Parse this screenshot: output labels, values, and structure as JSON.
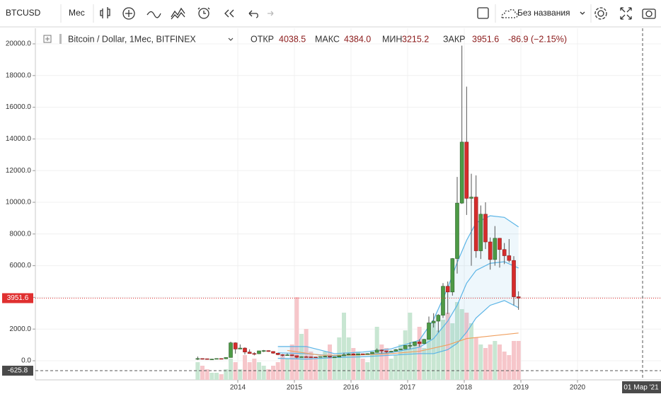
{
  "toolbar": {
    "symbol": "BTCUSD",
    "interval": "Мес",
    "layout_name": "Без названия"
  },
  "legend": {
    "title": "Bitcoin / Dollar, 1Мес, BITFINEX",
    "open_label": "ОТКР",
    "open": "4038.5",
    "high_label": "МАКС",
    "high": "4384.0",
    "low_label": "МИН",
    "low": "3215.2",
    "close_label": "ЗАКР",
    "close": "3951.6",
    "change": "-86.9 (−2.15%)"
  },
  "chart_data": {
    "type": "candlestick",
    "x": [
      "2013-04",
      "2013-05",
      "2013-06",
      "2013-07",
      "2013-08",
      "2013-09",
      "2013-10",
      "2013-11",
      "2013-12",
      "2014-01",
      "2014-02",
      "2014-03",
      "2014-04",
      "2014-05",
      "2014-06",
      "2014-07",
      "2014-08",
      "2014-09",
      "2014-10",
      "2014-11",
      "2014-12",
      "2015-01",
      "2015-02",
      "2015-03",
      "2015-04",
      "2015-05",
      "2015-06",
      "2015-07",
      "2015-08",
      "2015-09",
      "2015-10",
      "2015-11",
      "2015-12",
      "2016-01",
      "2016-02",
      "2016-03",
      "2016-04",
      "2016-05",
      "2016-06",
      "2016-07",
      "2016-08",
      "2016-09",
      "2016-10",
      "2016-11",
      "2016-12",
      "2017-01",
      "2017-02",
      "2017-03",
      "2017-04",
      "2017-05",
      "2017-06",
      "2017-07",
      "2017-08",
      "2017-09",
      "2017-10",
      "2017-11",
      "2017-12",
      "2018-01",
      "2018-02",
      "2018-03",
      "2018-04",
      "2018-05",
      "2018-06",
      "2018-07",
      "2018-08",
      "2018-09",
      "2018-10",
      "2018-11",
      "2018-12"
    ],
    "open": [
      93,
      139,
      128,
      97,
      106,
      140,
      126,
      205,
      1130,
      740,
      800,
      550,
      455,
      445,
      625,
      640,
      585,
      480,
      385,
      338,
      375,
      320,
      217,
      254,
      244,
      236,
      230,
      263,
      284,
      230,
      236,
      314,
      377,
      430,
      368,
      437,
      416,
      448,
      531,
      673,
      622,
      573,
      608,
      701,
      745,
      966,
      968,
      1190,
      1080,
      1350,
      2390,
      2500,
      2875,
      4700,
      4340,
      6450,
      9950,
      13800,
      10250,
      10330,
      6940,
      9250,
      7500,
      6390,
      7730,
      7020,
      6630,
      6330,
      4038.5
    ],
    "high": [
      266,
      140,
      130,
      115,
      140,
      145,
      210,
      1200,
      1160,
      1030,
      850,
      720,
      540,
      630,
      680,
      655,
      600,
      495,
      420,
      460,
      383,
      320,
      280,
      300,
      263,
      247,
      270,
      317,
      286,
      244,
      333,
      500,
      467,
      465,
      442,
      440,
      470,
      550,
      780,
      705,
      625,
      630,
      740,
      760,
      980,
      1160,
      1200,
      1350,
      1380,
      2790,
      3000,
      2940,
      4900,
      5000,
      6480,
      11600,
      19890,
      17300,
      11800,
      11700,
      9800,
      10000,
      7780,
      8500,
      7750,
      7430,
      7680,
      6600,
      4384.0
    ],
    "low": [
      50,
      80,
      90,
      65,
      100,
      115,
      105,
      200,
      450,
      730,
      400,
      440,
      340,
      420,
      550,
      570,
      440,
      355,
      275,
      325,
      300,
      160,
      210,
      235,
      215,
      226,
      220,
      252,
      195,
      225,
      235,
      300,
      350,
      352,
      365,
      395,
      412,
      436,
      525,
      470,
      480,
      570,
      602,
      683,
      740,
      750,
      920,
      890,
      1060,
      1350,
      2100,
      1800,
      2700,
      2950,
      4110,
      5500,
      9900,
      9200,
      6000,
      6500,
      6420,
      7050,
      5750,
      6000,
      5880,
      6100,
      6200,
      3500,
      3215.2
    ],
    "close": [
      139,
      128,
      97,
      106,
      140,
      126,
      205,
      1130,
      740,
      800,
      550,
      455,
      445,
      625,
      640,
      585,
      480,
      385,
      338,
      375,
      320,
      217,
      254,
      244,
      236,
      230,
      263,
      284,
      230,
      236,
      314,
      377,
      430,
      368,
      437,
      416,
      448,
      531,
      673,
      622,
      573,
      608,
      701,
      745,
      966,
      968,
      1190,
      1080,
      1350,
      2390,
      2500,
      2875,
      4700,
      4340,
      6450,
      9950,
      13800,
      10250,
      10330,
      6940,
      9250,
      7500,
      6390,
      7730,
      7020,
      6630,
      6330,
      4038.5,
      3951.6
    ],
    "volume": [
      25,
      20,
      15,
      10,
      10,
      8,
      15,
      30,
      25,
      15,
      35,
      25,
      30,
      25,
      20,
      15,
      20,
      25,
      35,
      30,
      50,
      117,
      65,
      72,
      40,
      30,
      30,
      40,
      50,
      35,
      60,
      95,
      60,
      45,
      40,
      30,
      25,
      40,
      75,
      50,
      45,
      30,
      35,
      50,
      70,
      95,
      50,
      75,
      45,
      60,
      80,
      70,
      85,
      95,
      80,
      110,
      100,
      95,
      80,
      60,
      50,
      45,
      50,
      55,
      50,
      40,
      35,
      55,
      55
    ],
    "up_color": "#4d9a46",
    "down_color": "#d62c2c",
    "series": [
      {
        "name": "BB Upper",
        "color": "#5ab4e6",
        "x": [
          "2014-09",
          "2015-03",
          "2015-09",
          "2016-03",
          "2016-09",
          "2017-03",
          "2017-06",
          "2017-09",
          "2017-11",
          "2018-01",
          "2018-03",
          "2018-06",
          "2018-09",
          "2018-12"
        ],
        "values": [
          900,
          900,
          450,
          550,
          750,
          1300,
          2600,
          4600,
          6200,
          7600,
          8700,
          9150,
          9050,
          8450
        ]
      },
      {
        "name": "BB Basis",
        "color": "#5ab4e6",
        "x": [
          "2014-09",
          "2015-03",
          "2015-09",
          "2016-03",
          "2016-09",
          "2017-03",
          "2017-06",
          "2017-09",
          "2017-11",
          "2018-01",
          "2018-03",
          "2018-06",
          "2018-09",
          "2018-12"
        ],
        "values": [
          500,
          450,
          300,
          380,
          520,
          850,
          1400,
          2500,
          3500,
          4900,
          5700,
          6150,
          6250,
          5850
        ]
      },
      {
        "name": "BB Lower",
        "color": "#5ab4e6",
        "x": [
          "2014-09",
          "2015-03",
          "2015-09",
          "2016-03",
          "2016-09",
          "2017-03",
          "2017-06",
          "2017-09",
          "2017-11",
          "2018-01",
          "2018-03",
          "2018-06",
          "2018-09",
          "2018-12"
        ],
        "values": [
          150,
          100,
          200,
          250,
          350,
          450,
          450,
          700,
          1100,
          1800,
          2700,
          3500,
          3800,
          3350
        ]
      },
      {
        "name": "MA",
        "color": "#f0a060",
        "x": [
          "2014-11",
          "2015-06",
          "2016-01",
          "2016-09",
          "2017-03",
          "2017-09",
          "2018-01",
          "2018-06",
          "2018-12"
        ],
        "values": [
          650,
          350,
          350,
          450,
          600,
          1000,
          1400,
          1560,
          1750
        ]
      }
    ],
    "ylim": [
      -1205,
      20982
    ],
    "yticks": [
      {
        "value": 0,
        "label": "0.0"
      },
      {
        "value": 2000,
        "label": "2000.0"
      },
      {
        "value": 4000,
        "label": "4000.0"
      },
      {
        "value": 6000,
        "label": "6000.0"
      },
      {
        "value": 8000,
        "label": "8000.0"
      },
      {
        "value": 10000,
        "label": "10000.0"
      },
      {
        "value": 12000,
        "label": "12000.0"
      },
      {
        "value": 14000,
        "label": "14000.0"
      },
      {
        "value": 16000,
        "label": "16000.0"
      },
      {
        "value": 18000,
        "label": "18000.0"
      },
      {
        "value": 20000,
        "label": "20000.0"
      }
    ],
    "xticks": [
      2014,
      2015,
      2016,
      2017,
      2018,
      2019,
      2020
    ],
    "last_price": 3951.6,
    "crosshair": {
      "price": -625.8,
      "time": "01 Мар '21"
    },
    "grid": true
  }
}
